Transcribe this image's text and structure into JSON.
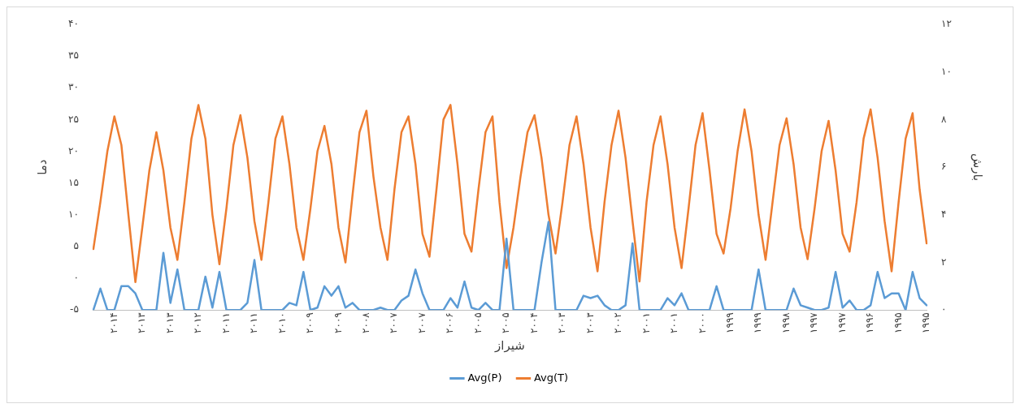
{
  "chart_data": {
    "type": "line",
    "xlabel": "شیراز",
    "ylabel": "دما",
    "y2label": "بارش",
    "legend": "bottom",
    "grid": false,
    "marker": "none",
    "line_style": "solid",
    "categories": [
      null,
      null,
      null,
      "۲۰۱۴",
      null,
      null,
      null,
      "۲۰۱۳",
      null,
      null,
      null,
      "۲۰۱۳",
      null,
      null,
      null,
      "۲۰۱۲",
      null,
      null,
      null,
      "۲۰۱۱",
      null,
      null,
      null,
      "۲۰۱۱",
      null,
      null,
      null,
      "۲۰۱۰",
      null,
      null,
      null,
      "۲۰۰۹",
      null,
      null,
      null,
      "۲۰۰۹",
      null,
      null,
      null,
      "۲۰۰۸",
      null,
      null,
      null,
      "۲۰۰۷",
      null,
      null,
      null,
      "۲۰۰۷",
      null,
      null,
      null,
      "۲۰۰۶",
      null,
      null,
      null,
      "۲۰۰۵",
      null,
      null,
      null,
      "۲۰۰۵",
      null,
      null,
      null,
      "۲۰۰۴",
      null,
      null,
      null,
      "۲۰۰۳",
      null,
      null,
      null,
      "۲۰۰۳",
      null,
      null,
      null,
      "۲۰۰۲",
      null,
      null,
      null,
      "۲۰۰۱",
      null,
      null,
      null,
      "۲۰۰۱",
      null,
      null,
      null,
      "۲۰۰۰",
      null,
      null,
      null,
      "۱۹۹۹",
      null,
      null,
      null,
      "۱۹۹۹",
      null,
      null,
      null,
      "۱۹۹۸",
      null,
      null,
      null,
      "۱۹۹۷",
      null,
      null,
      null,
      "۱۹۹۷",
      null,
      null,
      null,
      "۱۹۹۶",
      null,
      null,
      null,
      "۱۹۹۵",
      null,
      null,
      null,
      "۱۹۹۵"
    ],
    "ylim": [
      -5,
      40
    ],
    "yticks": [
      {
        "value": -5,
        "label": "-۵"
      },
      {
        "value": 0,
        "label": "۰"
      },
      {
        "value": 5,
        "label": "۵"
      },
      {
        "value": 10,
        "label": "۱۰"
      },
      {
        "value": 15,
        "label": "۱۵"
      },
      {
        "value": 20,
        "label": "۲۰"
      },
      {
        "value": 25,
        "label": "۲۵"
      },
      {
        "value": 30,
        "label": "۳۰"
      },
      {
        "value": 35,
        "label": "۳۵"
      },
      {
        "value": 40,
        "label": "۴۰"
      }
    ],
    "y2lim": [
      0,
      12
    ],
    "y2ticks": [
      {
        "value": 0,
        "label": "۰"
      },
      {
        "value": 2,
        "label": "۲"
      },
      {
        "value": 4,
        "label": "۴"
      },
      {
        "value": 6,
        "label": "۶"
      },
      {
        "value": 8,
        "label": "۸"
      },
      {
        "value": 10,
        "label": "۱۰"
      },
      {
        "value": 12,
        "label": "۱۲"
      }
    ],
    "series": [
      {
        "name": "Avg(P)",
        "color": "#5b9bd5",
        "axis": "y2",
        "values": [
          0,
          0.9,
          0,
          0,
          1.0,
          1.0,
          0.7,
          0,
          0,
          0,
          2.4,
          0.3,
          1.7,
          0,
          0,
          0,
          1.4,
          0.1,
          1.6,
          0,
          0,
          0,
          0.3,
          2.1,
          0,
          0,
          0,
          0,
          0.3,
          0.2,
          1.6,
          0,
          0.1,
          1.0,
          0.6,
          1.0,
          0.1,
          0.3,
          0,
          0,
          0,
          0.1,
          0,
          0,
          0.4,
          0.6,
          1.7,
          0.7,
          0,
          0,
          0,
          0.5,
          0.1,
          1.2,
          0.1,
          0,
          0.3,
          0,
          0,
          3.0,
          0,
          0,
          0,
          0,
          2.0,
          3.7,
          0,
          0,
          0,
          0,
          0.6,
          0.5,
          0.6,
          0.2,
          0,
          0,
          0.2,
          2.8,
          0,
          0,
          0,
          0,
          0.5,
          0.2,
          0.7,
          0,
          0,
          0,
          0,
          1.0,
          0,
          0,
          0,
          0,
          0,
          1.7,
          0,
          0,
          0,
          0,
          0.9,
          0.2,
          0.1,
          0,
          0,
          0.1,
          1.6,
          0.1,
          0.4,
          0,
          0,
          0.2,
          1.6,
          0.5,
          0.7,
          0.7,
          0,
          1.6,
          0.5,
          0.2
        ]
      },
      {
        "name": "Avg(T)",
        "color": "#ed7d31",
        "axis": "y",
        "values": [
          4.6,
          12,
          20,
          25.5,
          21,
          10,
          -0.6,
          8.1,
          17,
          23,
          17,
          8,
          2.9,
          12,
          22,
          27.3,
          22,
          10,
          2.2,
          11,
          21,
          25.7,
          19,
          9,
          2.9,
          12,
          22,
          25.5,
          18,
          8,
          2.9,
          11,
          20,
          24,
          18,
          8,
          2.5,
          13,
          23,
          26.4,
          16,
          8,
          2.9,
          14,
          23,
          25.5,
          18,
          7,
          3.4,
          14,
          25,
          27.3,
          18,
          7,
          4.2,
          14,
          23,
          25.5,
          12,
          1.6,
          8,
          16,
          23,
          25.7,
          19,
          10,
          3.9,
          12,
          21,
          25.5,
          18,
          8,
          1.1,
          12,
          21,
          26.4,
          19,
          9,
          -0.5,
          12,
          21,
          25.5,
          18,
          8,
          1.6,
          11,
          21,
          26,
          17,
          7,
          3.9,
          11,
          20,
          26.6,
          20,
          10,
          2.9,
          12,
          21,
          25.2,
          18,
          8,
          3,
          11,
          20,
          24.8,
          17,
          7,
          4.2,
          12,
          22,
          26.6,
          19,
          9,
          1.1,
          12,
          22,
          26,
          14,
          5.5
        ]
      }
    ]
  }
}
